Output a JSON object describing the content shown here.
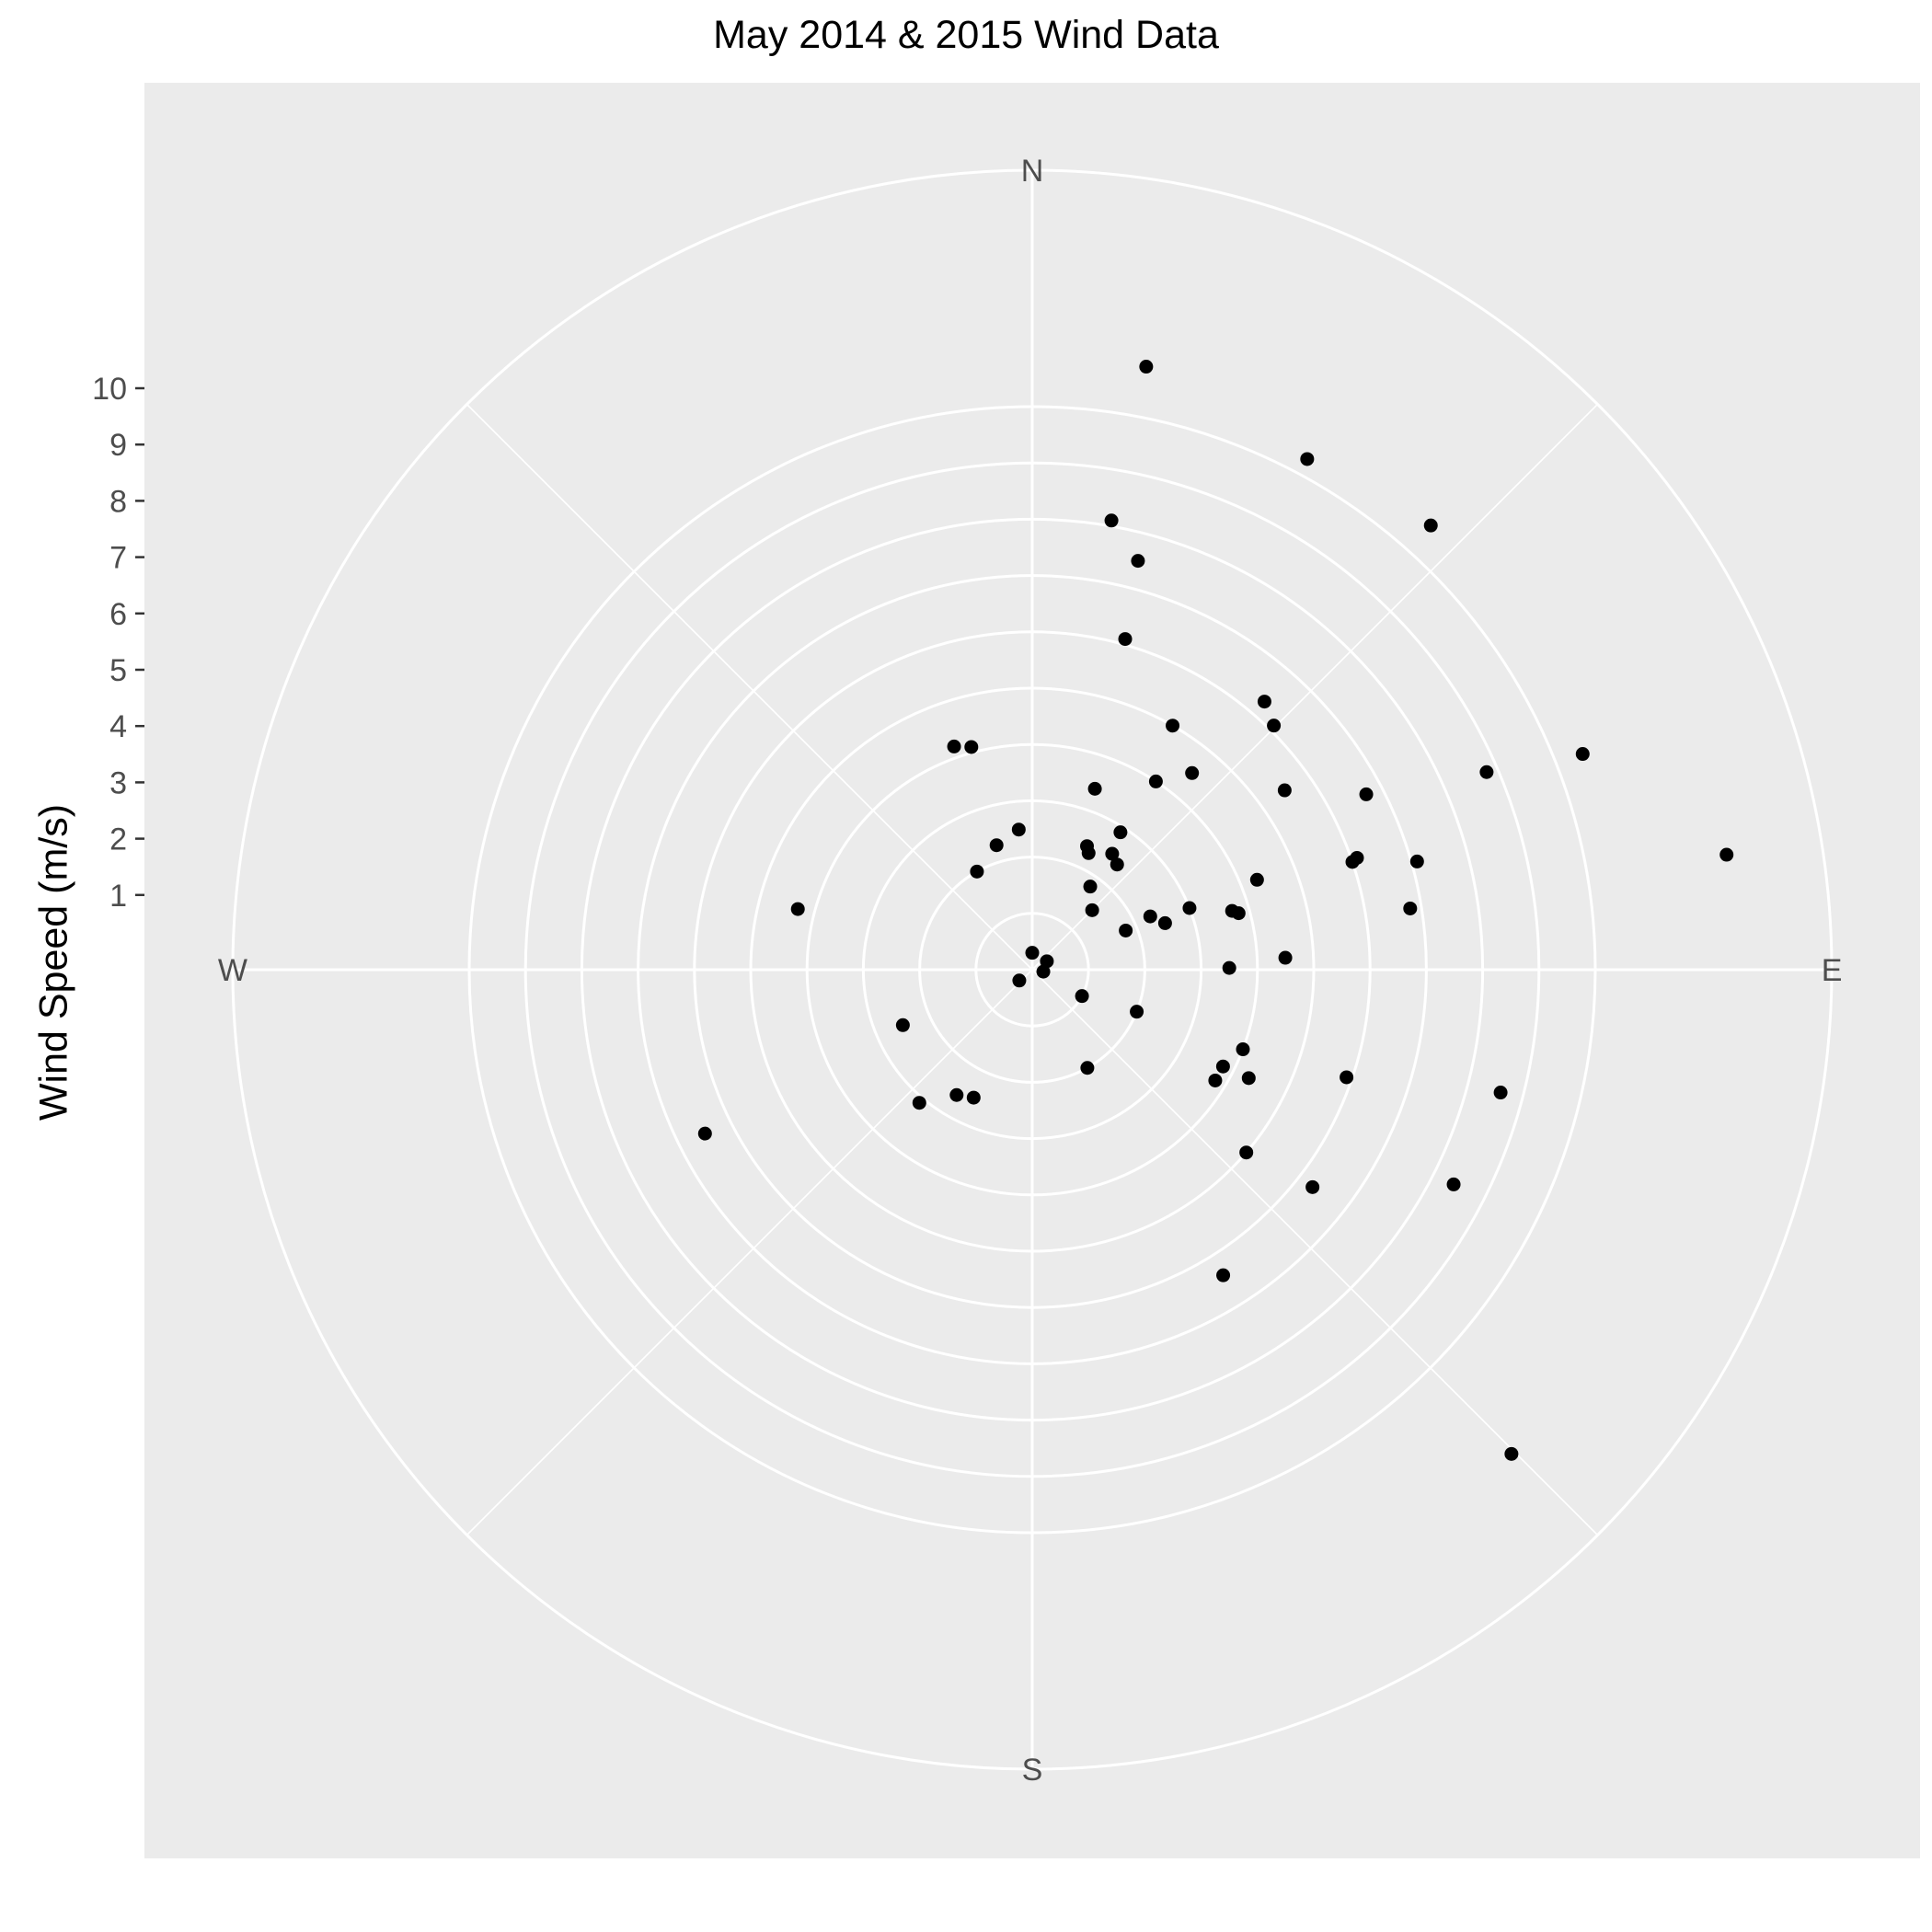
{
  "chart_data": {
    "type": "scatter",
    "coordinate_system": "polar",
    "title": "May 2014 & 2015 Wind Data",
    "ylabel": "Wind Speed (m/s)",
    "radial_ticks": [
      1,
      2,
      3,
      4,
      5,
      6,
      7,
      8,
      9,
      10
    ],
    "radial_max": 14.2,
    "direction_labels": [
      "N",
      "E",
      "S",
      "W"
    ],
    "colors": {
      "panel": "#ebebeb",
      "grid": "#ffffff",
      "point": "#000000",
      "text": "#4d4d4d"
    },
    "points": [
      {
        "dir": 10.7,
        "speed": 10.9
      },
      {
        "dir": 28.3,
        "speed": 10.3
      },
      {
        "dir": 41.9,
        "speed": 10.6
      },
      {
        "dir": 10.0,
        "speed": 8.1
      },
      {
        "dir": 14.5,
        "speed": 7.5
      },
      {
        "dir": 15.7,
        "speed": 6.1
      },
      {
        "dir": 40.9,
        "speed": 6.3
      },
      {
        "dir": 44.7,
        "speed": 6.1
      },
      {
        "dir": 29.9,
        "speed": 5.0
      },
      {
        "dir": 39.1,
        "speed": 4.5
      },
      {
        "dir": 33.3,
        "speed": 4.0
      },
      {
        "dir": 19.1,
        "speed": 3.4
      },
      {
        "dir": 32.7,
        "speed": 2.9
      },
      {
        "dir": 34.6,
        "speed": 2.5
      },
      {
        "dir": 38.9,
        "speed": 2.4
      },
      {
        "dir": 23.9,
        "speed": 2.4
      },
      {
        "dir": 25.8,
        "speed": 2.3
      },
      {
        "dir": 34.9,
        "speed": 1.8
      },
      {
        "dir": 68.6,
        "speed": 10.5
      },
      {
        "dir": 66.5,
        "speed": 8.8
      },
      {
        "dir": 74.3,
        "speed": 7.1
      },
      {
        "dir": 62.3,
        "speed": 6.7
      },
      {
        "dir": 54.6,
        "speed": 5.5
      },
      {
        "dir": 80.6,
        "speed": 12.5
      },
      {
        "dir": 80.8,
        "speed": 6.8
      },
      {
        "dir": 71.0,
        "speed": 6.1
      },
      {
        "dir": 71.4,
        "speed": 6.0
      },
      {
        "dir": 68.2,
        "speed": 4.3
      },
      {
        "dir": 74.7,
        "speed": 3.8
      },
      {
        "dir": 68.6,
        "speed": 3.0
      },
      {
        "dir": 73.6,
        "speed": 3.7
      },
      {
        "dir": 87.3,
        "speed": 4.5
      },
      {
        "dir": 89.5,
        "speed": 3.5
      },
      {
        "dir": 65.7,
        "speed": 2.3
      },
      {
        "dir": 70.7,
        "speed": 2.5
      },
      {
        "dir": 67.3,
        "speed": 1.8
      },
      {
        "dir": 45.2,
        "speed": 1.5
      },
      {
        "dir": 116.6,
        "speed": 4.3
      },
      {
        "dir": 110.7,
        "speed": 4.0
      },
      {
        "dir": 116.9,
        "speed": 3.8
      },
      {
        "dir": 121.2,
        "speed": 3.8
      },
      {
        "dir": 108.9,
        "speed": 5.9
      },
      {
        "dir": 104.7,
        "speed": 8.6
      },
      {
        "dir": 117.0,
        "speed": 8.4
      },
      {
        "dir": 130.5,
        "speed": 5.0
      },
      {
        "dir": 127.8,
        "speed": 6.3
      },
      {
        "dir": 148.0,
        "speed": 6.4
      },
      {
        "dir": 135.3,
        "speed": 12.1
      },
      {
        "dir": 150.7,
        "speed": 2.0
      },
      {
        "dir": 117.9,
        "speed": 1.0
      },
      {
        "dir": 111.9,
        "speed": 2.0
      },
      {
        "dir": 204.6,
        "speed": 2.5
      },
      {
        "dir": 211.1,
        "speed": 2.6
      },
      {
        "dir": 220.3,
        "speed": 3.1
      },
      {
        "dir": 246.8,
        "speed": 2.5
      },
      {
        "dir": 243.4,
        "speed": 6.5
      },
      {
        "dir": 284.5,
        "speed": 4.3
      },
      {
        "dir": 330.6,
        "speed": 2.0
      },
      {
        "dir": 344.0,
        "speed": 2.3
      },
      {
        "dir": 344.7,
        "speed": 4.1
      },
      {
        "dir": 340.7,
        "speed": 4.2
      },
      {
        "dir": 354.5,
        "speed": 2.5
      },
      {
        "dir": 0.0,
        "speed": 0.3
      },
      {
        "dir": 60.0,
        "speed": 0.3
      },
      {
        "dir": 230.0,
        "speed": 0.3
      },
      {
        "dir": 100.0,
        "speed": 0.2
      }
    ]
  }
}
